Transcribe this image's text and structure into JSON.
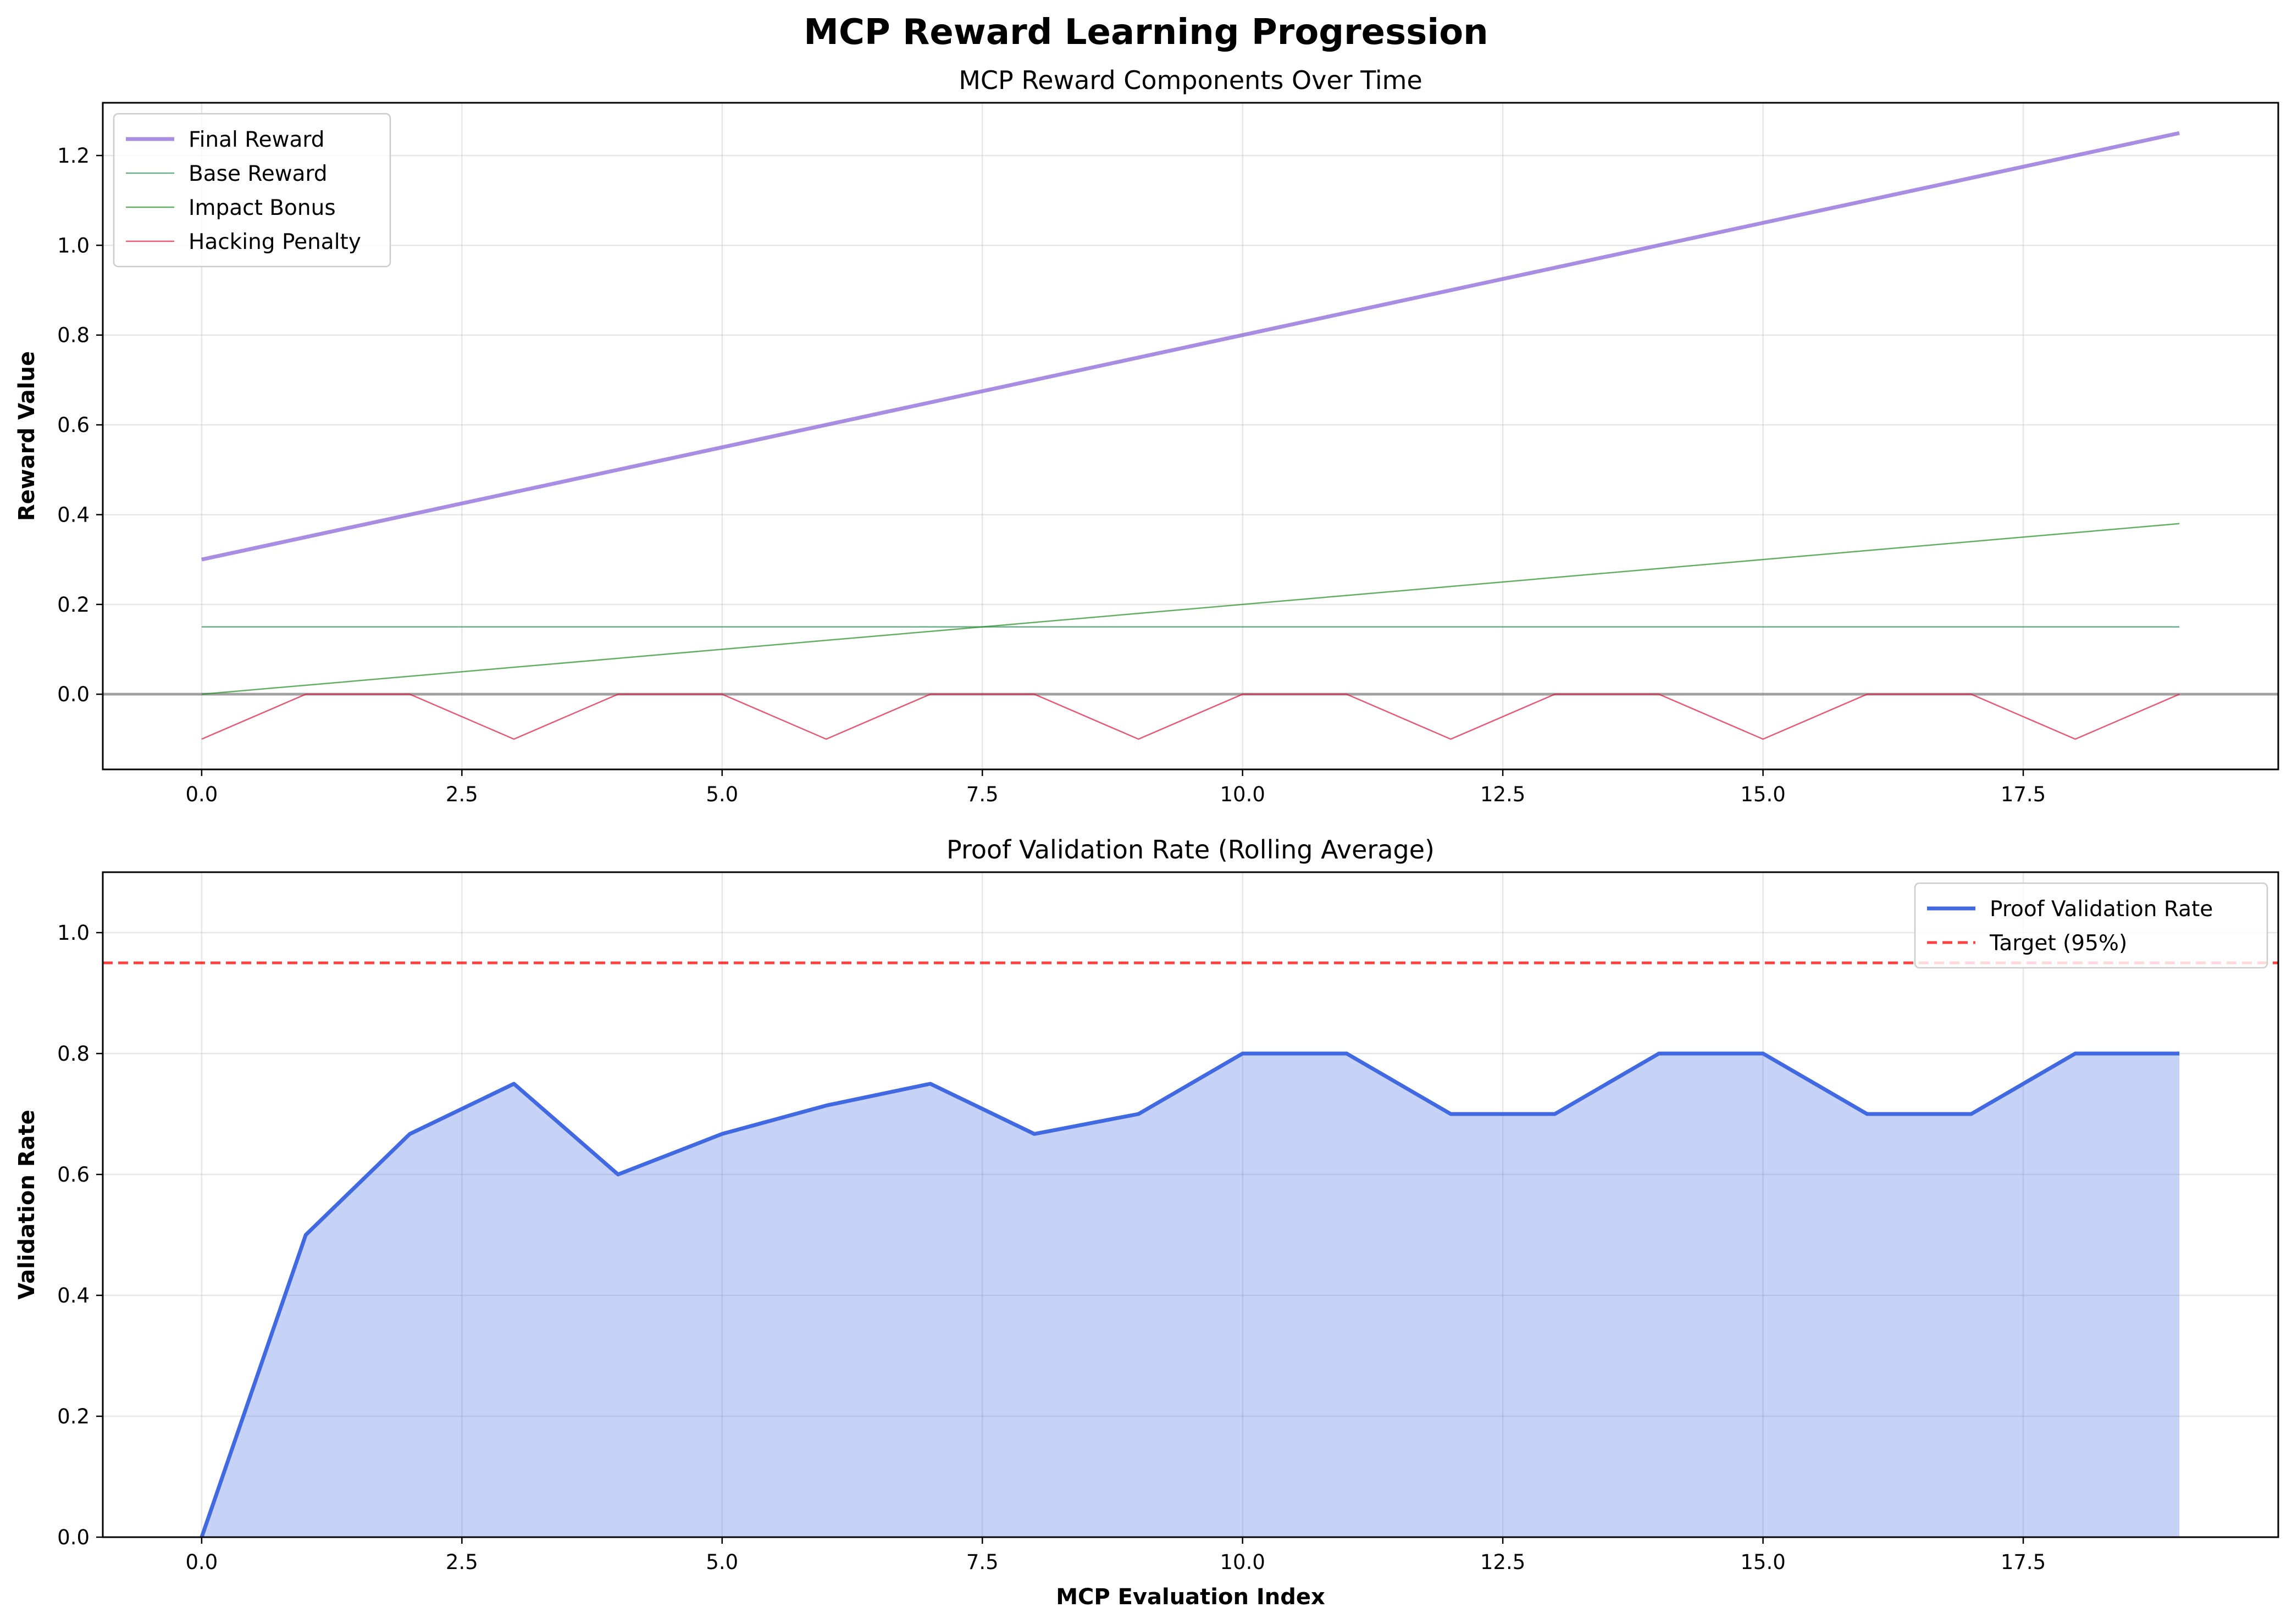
{
  "figure": {
    "title": "MCP Reward Learning Progression"
  },
  "chart_data": [
    {
      "type": "line",
      "title": "MCP Reward Components Over Time",
      "xlabel": "",
      "ylabel": "Reward Value",
      "xlim": [
        -0.95,
        19.95
      ],
      "ylim": [
        -0.1675,
        1.3175
      ],
      "xticks": [
        0.0,
        2.5,
        5.0,
        7.5,
        10.0,
        12.5,
        15.0,
        17.5
      ],
      "xtick_labels": [
        "0.0",
        "2.5",
        "5.0",
        "7.5",
        "10.0",
        "12.5",
        "15.0",
        "17.5"
      ],
      "yticks": [
        0.0,
        0.2,
        0.4,
        0.6,
        0.8,
        1.0,
        1.2
      ],
      "ytick_labels": [
        "0.0",
        "0.2",
        "0.4",
        "0.6",
        "0.8",
        "1.0",
        "1.2"
      ],
      "grid": true,
      "legend_position": "top-left",
      "reference_lines": [
        {
          "y": 0.0,
          "color": "#808080",
          "style": "solid"
        }
      ],
      "x": [
        0,
        1,
        2,
        3,
        4,
        5,
        6,
        7,
        8,
        9,
        10,
        11,
        12,
        13,
        14,
        15,
        16,
        17,
        18,
        19
      ],
      "series": [
        {
          "name": "Final Reward",
          "color": "#9370DB",
          "values": [
            0.3,
            0.35,
            0.4,
            0.45,
            0.5,
            0.55,
            0.6,
            0.65,
            0.7,
            0.75,
            0.8,
            0.85,
            0.9,
            0.95,
            1.0,
            1.05,
            1.1,
            1.15,
            1.2,
            1.25
          ]
        },
        {
          "name": "Base Reward",
          "color": "#2E8B57",
          "values": [
            0.15,
            0.15,
            0.15,
            0.15,
            0.15,
            0.15,
            0.15,
            0.15,
            0.15,
            0.15,
            0.15,
            0.15,
            0.15,
            0.15,
            0.15,
            0.15,
            0.15,
            0.15,
            0.15,
            0.15
          ]
        },
        {
          "name": "Impact Bonus",
          "color": "#228B22",
          "values": [
            0.0,
            0.02,
            0.04,
            0.06,
            0.08,
            0.1,
            0.12,
            0.14,
            0.16,
            0.18,
            0.2,
            0.22,
            0.24,
            0.26,
            0.28,
            0.3,
            0.32,
            0.34,
            0.36,
            0.38
          ]
        },
        {
          "name": "Hacking Penalty",
          "color": "#DC143C",
          "values": [
            -0.1,
            0.0,
            0.0,
            -0.1,
            0.0,
            0.0,
            -0.1,
            0.0,
            0.0,
            -0.1,
            0.0,
            0.0,
            -0.1,
            0.0,
            0.0,
            -0.1,
            0.0,
            0.0,
            -0.1,
            0.0
          ]
        }
      ]
    },
    {
      "type": "area",
      "title": "Proof Validation Rate (Rolling Average)",
      "xlabel": "MCP Evaluation Index",
      "ylabel": "Validation Rate",
      "xlim": [
        -0.95,
        19.95
      ],
      "ylim": [
        0.0,
        1.1
      ],
      "xticks": [
        0.0,
        2.5,
        5.0,
        7.5,
        10.0,
        12.5,
        15.0,
        17.5
      ],
      "xtick_labels": [
        "0.0",
        "2.5",
        "5.0",
        "7.5",
        "10.0",
        "12.5",
        "15.0",
        "17.5"
      ],
      "yticks": [
        0.0,
        0.2,
        0.4,
        0.6,
        0.8,
        1.0
      ],
      "ytick_labels": [
        "0.0",
        "0.2",
        "0.4",
        "0.6",
        "0.8",
        "1.0"
      ],
      "grid": true,
      "legend_position": "top-right",
      "x": [
        0,
        1,
        2,
        3,
        4,
        5,
        6,
        7,
        8,
        9,
        10,
        11,
        12,
        13,
        14,
        15,
        16,
        17,
        18,
        19
      ],
      "series": [
        {
          "name": "Proof Validation Rate",
          "color": "#4169E1",
          "fill_color": "#4169E1",
          "values": [
            0.0,
            0.5,
            0.667,
            0.75,
            0.6,
            0.667,
            0.714,
            0.75,
            0.667,
            0.7,
            0.8,
            0.8,
            0.7,
            0.7,
            0.8,
            0.8,
            0.7,
            0.7,
            0.8,
            0.8
          ]
        }
      ],
      "reference_lines": [
        {
          "name": "Target (95%)",
          "y": 0.95,
          "color": "#FF0000",
          "style": "dashed"
        }
      ]
    }
  ]
}
